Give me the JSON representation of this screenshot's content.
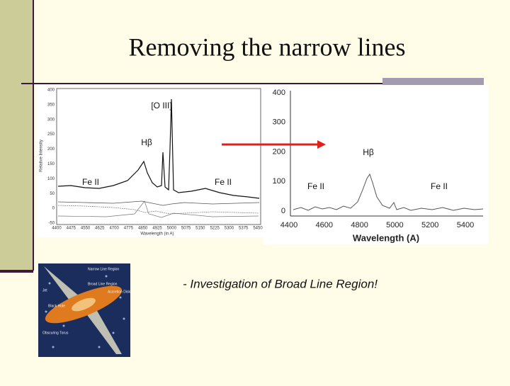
{
  "title": "Removing the narrow lines",
  "left_plot": {
    "y_label": "Relative Intensity",
    "x_label": "Wavelength (in A)",
    "yticks": [
      "400",
      "350",
      "300",
      "250",
      "200",
      "150",
      "100",
      "50",
      "0",
      "-50"
    ],
    "xticks": [
      "4400",
      "4475",
      "4550",
      "4625",
      "4700",
      "4775",
      "4850",
      "4925",
      "5000",
      "5075",
      "5150",
      "5225",
      "5300",
      "5375",
      "5450"
    ]
  },
  "right_plot": {
    "x_label": "Wavelength (A)",
    "yticks": [
      "400",
      "300",
      "200",
      "100",
      "0"
    ],
    "xticks": [
      "4400",
      "4600",
      "4800",
      "5000",
      "5200",
      "5400"
    ]
  },
  "annotations": [
    "[O III]",
    "Hβ",
    "Fe II",
    "Fe II",
    "Hβ",
    "Fe II",
    "Fe II"
  ],
  "diagram": {
    "labels": [
      "Narrow Line Region",
      "Broad Line Region",
      "Jet",
      "Black Hole",
      "Accretion Disk",
      "Obscuring Torus"
    ]
  },
  "bullet": "- Investigation of Broad Line Region!"
}
